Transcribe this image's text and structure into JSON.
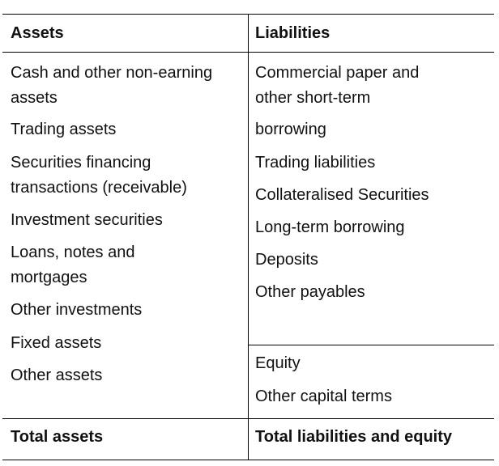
{
  "table": {
    "headers": {
      "assets": "Assets",
      "liabilities": "Liabilities"
    },
    "assets_items": [
      [
        "Cash and other non-earning",
        "assets"
      ],
      [
        "Trading assets"
      ],
      [
        "Securities financing",
        "transactions (receivable)"
      ],
      [
        "Investment securities"
      ],
      [
        "Loans, notes and",
        "mortgages"
      ],
      [
        "Other investments"
      ],
      [
        "Fixed assets"
      ],
      [
        "Other assets"
      ]
    ],
    "liabilities_items": [
      [
        "Commercial paper and",
        "other short-term"
      ],
      [
        "borrowing"
      ],
      [
        "Trading liabilities"
      ],
      [
        "Collateralised Securities"
      ],
      [
        "Long-term borrowing"
      ],
      [
        "Deposits"
      ],
      [
        "Other payables"
      ]
    ],
    "equity_items": [
      [
        "Equity"
      ],
      [
        "Other capital terms"
      ]
    ],
    "totals": {
      "assets": "Total assets",
      "liabilities": "Total liabilities and equity"
    }
  }
}
